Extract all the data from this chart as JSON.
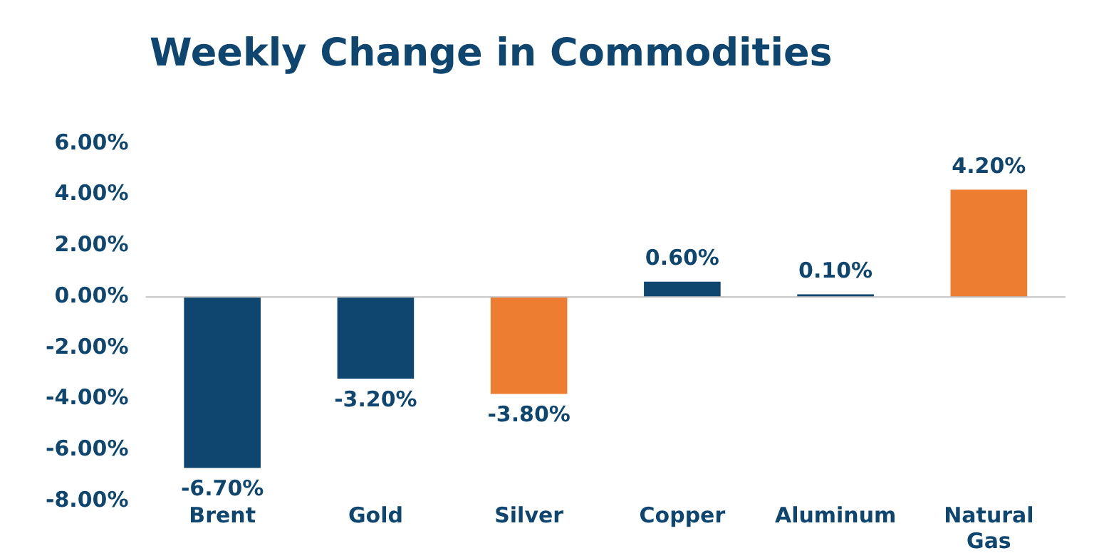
{
  "chart_data": {
    "type": "bar",
    "title": "Weekly Change in Commodities",
    "categories": [
      "Brent",
      "Gold",
      "Silver",
      "Copper",
      "Aluminum",
      "Natural Gas"
    ],
    "values": [
      -6.7,
      -3.2,
      -3.8,
      0.6,
      0.1,
      4.2
    ],
    "colors": [
      "#0e4670",
      "#0e4670",
      "#ed7d31",
      "#0e4670",
      "#0e4670",
      "#ed7d31"
    ],
    "value_labels": [
      "-6.70%",
      "-3.20%",
      "-3.80%",
      "0.60%",
      "0.10%",
      "4.20%"
    ],
    "ylim": [
      -8,
      6
    ],
    "yticks": [
      {
        "value": -8,
        "label": "-8.00%"
      },
      {
        "value": -6,
        "label": "-6.00%"
      },
      {
        "value": -4,
        "label": "-4.00%"
      },
      {
        "value": -2,
        "label": "-2.00%"
      },
      {
        "value": 0,
        "label": "0.00%"
      },
      {
        "value": 2,
        "label": "2.00%"
      },
      {
        "value": 4,
        "label": "4.00%"
      },
      {
        "value": 6,
        "label": "6.00%"
      }
    ],
    "ref_lines": [
      {
        "axis": "y",
        "value": 0,
        "color": "#bfbfbf"
      }
    ],
    "grid": false,
    "legend": false
  }
}
